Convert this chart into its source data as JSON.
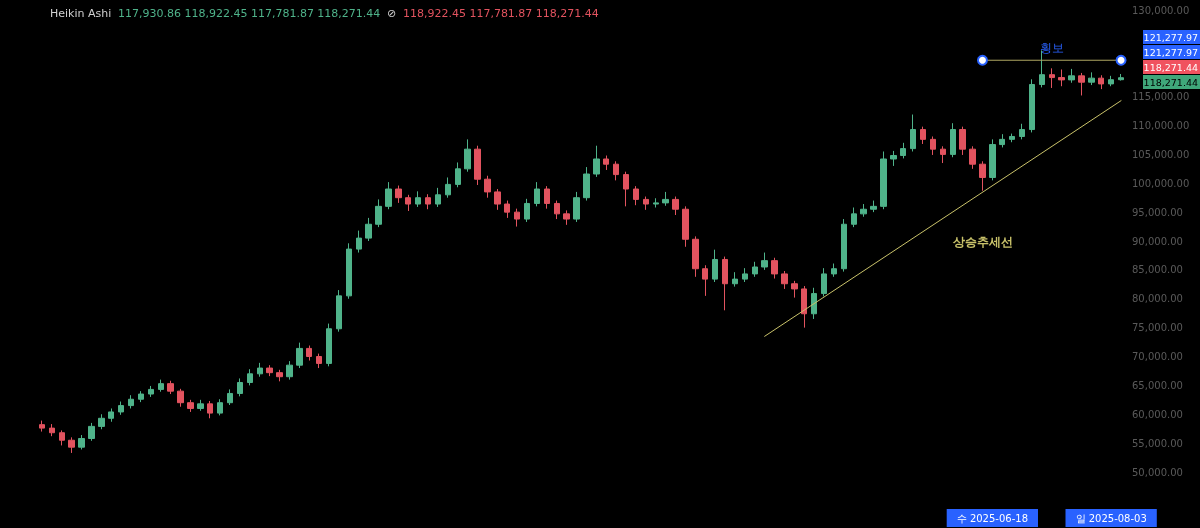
{
  "chart_data": {
    "type": "candlestick",
    "title": "Heikin Ashi",
    "annotations": [
      "117,930.86 118,922.45 117,781.87 118,271.44",
      "⊘",
      "118,922.45 117,781.87 118,271.44",
      "121,277.97",
      "121,277.97",
      "118,271.44",
      "118,271.44"
    ],
    "categories": [
      null,
      null,
      null,
      null,
      null,
      null,
      null,
      null,
      null,
      null,
      null,
      null,
      null,
      null,
      null,
      null,
      null,
      null,
      null,
      null,
      null,
      null,
      null,
      null,
      null,
      null,
      null,
      null,
      null,
      null,
      null,
      null,
      null,
      null,
      null,
      null,
      null,
      null,
      null,
      null,
      null,
      null,
      null,
      null,
      null,
      null,
      null,
      null,
      null,
      null,
      null,
      null,
      null,
      null,
      null,
      null,
      null,
      null,
      null,
      null,
      null,
      null,
      null,
      null,
      null,
      null,
      null,
      null,
      null,
      null,
      null,
      null,
      null,
      null,
      null,
      null,
      null,
      null,
      null,
      null,
      null,
      null,
      null,
      null,
      null,
      null,
      null,
      null,
      null,
      null,
      null,
      null,
      null,
      null,
      null,
      null,
      "수 2025-06-18",
      null,
      null,
      null,
      null,
      null,
      null,
      null,
      null,
      null,
      null,
      null,
      "일 2025-08-03",
      null
    ],
    "ohlc": [
      [
        58200,
        58900,
        57000,
        57600
      ],
      [
        57600,
        58300,
        56200,
        56800
      ],
      [
        56800,
        57200,
        54600,
        55500
      ],
      [
        55500,
        56000,
        53300,
        54300
      ],
      [
        54300,
        56400,
        53900,
        55800
      ],
      [
        55800,
        58500,
        55400,
        57900
      ],
      [
        57900,
        60000,
        57400,
        59300
      ],
      [
        59300,
        61000,
        58700,
        60400
      ],
      [
        60400,
        62200,
        59900,
        61500
      ],
      [
        61500,
        63300,
        61000,
        62600
      ],
      [
        62600,
        64000,
        62100,
        63500
      ],
      [
        63500,
        64900,
        63000,
        64300
      ],
      [
        64300,
        66000,
        63900,
        65300
      ],
      [
        65300,
        65800,
        63500,
        64000
      ],
      [
        64000,
        64400,
        61300,
        62000
      ],
      [
        62000,
        62500,
        60400,
        61000
      ],
      [
        61000,
        62500,
        60600,
        61800
      ],
      [
        61800,
        62300,
        59300,
        60200
      ],
      [
        60200,
        62600,
        59800,
        62000
      ],
      [
        62000,
        64300,
        61600,
        63600
      ],
      [
        63600,
        66200,
        63100,
        65500
      ],
      [
        65500,
        67800,
        65000,
        67000
      ],
      [
        67000,
        68900,
        66500,
        68000
      ],
      [
        68000,
        68500,
        66600,
        67200
      ],
      [
        67200,
        67700,
        65700,
        66500
      ],
      [
        66500,
        69200,
        66000,
        68500
      ],
      [
        68500,
        72400,
        68000,
        71400
      ],
      [
        71400,
        71900,
        69300,
        70000
      ],
      [
        70000,
        70500,
        68000,
        68800
      ],
      [
        68800,
        75700,
        68300,
        74800
      ],
      [
        74800,
        81500,
        74300,
        80500
      ],
      [
        80500,
        89600,
        80000,
        88600
      ],
      [
        88600,
        91800,
        88000,
        90500
      ],
      [
        90500,
        94000,
        90000,
        92900
      ],
      [
        92900,
        97200,
        92400,
        96000
      ],
      [
        96000,
        100200,
        95500,
        99000
      ],
      [
        99000,
        99600,
        96600,
        97500
      ],
      [
        97500,
        98000,
        95200,
        96400
      ],
      [
        96400,
        98600,
        95900,
        97500
      ],
      [
        97500,
        98100,
        95500,
        96400
      ],
      [
        96400,
        99200,
        95900,
        98000
      ],
      [
        98000,
        101000,
        97500,
        99800
      ],
      [
        99800,
        103600,
        99300,
        102500
      ],
      [
        102500,
        107600,
        102000,
        105900
      ],
      [
        105900,
        106500,
        99700,
        100700
      ],
      [
        100700,
        101300,
        97500,
        98500
      ],
      [
        98500,
        99000,
        95400,
        96400
      ],
      [
        96400,
        97000,
        94000,
        95000
      ],
      [
        95000,
        95600,
        92500,
        93800
      ],
      [
        93800,
        97300,
        93300,
        96500
      ],
      [
        96500,
        100200,
        96000,
        99000
      ],
      [
        99000,
        99500,
        95600,
        96500
      ],
      [
        96500,
        97000,
        93800,
        94700
      ],
      [
        94700,
        95300,
        92800,
        93800
      ],
      [
        93800,
        98500,
        93300,
        97500
      ],
      [
        97500,
        102800,
        97000,
        101600
      ],
      [
        101600,
        106500,
        101100,
        104200
      ],
      [
        104200,
        104800,
        102300,
        103300
      ],
      [
        103300,
        103800,
        100500,
        101500
      ],
      [
        101500,
        102000,
        96000,
        99000
      ],
      [
        99000,
        99500,
        96200,
        97200
      ],
      [
        97200,
        97700,
        95400,
        96400
      ],
      [
        96400,
        97400,
        95800,
        96600
      ],
      [
        96600,
        98500,
        96100,
        97200
      ],
      [
        97200,
        97700,
        94500,
        95500
      ],
      [
        95500,
        96000,
        89000,
        90300
      ],
      [
        90300,
        90800,
        83800,
        85200
      ],
      [
        85200,
        85800,
        80500,
        83400
      ],
      [
        83400,
        88500,
        82900,
        86800
      ],
      [
        86800,
        87300,
        78000,
        82600
      ],
      [
        82600,
        84600,
        82100,
        83400
      ],
      [
        83400,
        85300,
        82900,
        84300
      ],
      [
        84300,
        86400,
        83800,
        85500
      ],
      [
        85500,
        88000,
        85000,
        86600
      ],
      [
        86600,
        87100,
        83500,
        84300
      ],
      [
        84300,
        84800,
        81700,
        82600
      ],
      [
        82600,
        83100,
        80200,
        81700
      ],
      [
        81700,
        82200,
        75000,
        77400
      ],
      [
        77400,
        81900,
        76500,
        80900
      ],
      [
        80900,
        85300,
        80400,
        84300
      ],
      [
        84300,
        86100,
        83800,
        85200
      ],
      [
        85200,
        93800,
        84700,
        92900
      ],
      [
        92900,
        95800,
        92400,
        94700
      ],
      [
        94700,
        96400,
        94200,
        95500
      ],
      [
        95500,
        97000,
        95000,
        96000
      ],
      [
        96000,
        105500,
        95500,
        104200
      ],
      [
        104200,
        105600,
        103000,
        104800
      ],
      [
        104800,
        107000,
        104300,
        106000
      ],
      [
        106000,
        111900,
        105500,
        109300
      ],
      [
        109300,
        109800,
        106800,
        107600
      ],
      [
        107600,
        108100,
        104900,
        105900
      ],
      [
        105900,
        106400,
        103500,
        105000
      ],
      [
        105000,
        110400,
        104500,
        109300
      ],
      [
        109300,
        109800,
        104900,
        105900
      ],
      [
        105900,
        106400,
        102500,
        103300
      ],
      [
        103300,
        103800,
        98700,
        101000
      ],
      [
        101000,
        107600,
        100500,
        106700
      ],
      [
        106700,
        108500,
        106200,
        107600
      ],
      [
        107600,
        108600,
        107100,
        108100
      ],
      [
        108100,
        110300,
        107600,
        109300
      ],
      [
        109300,
        118000,
        108800,
        117100
      ],
      [
        117100,
        123000,
        116600,
        118800
      ],
      [
        118800,
        119900,
        116500,
        118300
      ],
      [
        118300,
        119700,
        116800,
        117900
      ],
      [
        117900,
        119800,
        117400,
        118600
      ],
      [
        118600,
        119100,
        115200,
        117500
      ],
      [
        117500,
        119200,
        117000,
        118200
      ],
      [
        118200,
        118700,
        116300,
        117200
      ],
      [
        117200,
        118600,
        116800,
        117930.86
      ],
      [
        117930.86,
        118922.45,
        117781.87,
        118271.44
      ]
    ],
    "colors": [
      "#e2535f",
      "#e2535f",
      "#e2535f",
      "#e2535f",
      "#4fb38a",
      "#4fb38a",
      "#4fb38a",
      "#4fb38a",
      "#4fb38a",
      "#4fb38a",
      "#4fb38a",
      "#4fb38a",
      "#4fb38a",
      "#e2535f",
      "#e2535f",
      "#e2535f",
      "#4fb38a",
      "#e2535f",
      "#4fb38a",
      "#4fb38a",
      "#4fb38a",
      "#4fb38a",
      "#4fb38a",
      "#e2535f",
      "#e2535f",
      "#4fb38a",
      "#4fb38a",
      "#e2535f",
      "#e2535f",
      "#4fb38a",
      "#4fb38a",
      "#4fb38a",
      "#4fb38a",
      "#4fb38a",
      "#4fb38a",
      "#4fb38a",
      "#e2535f",
      "#e2535f",
      "#4fb38a",
      "#e2535f",
      "#4fb38a",
      "#4fb38a",
      "#4fb38a",
      "#4fb38a",
      "#e2535f",
      "#e2535f",
      "#e2535f",
      "#e2535f",
      "#e2535f",
      "#4fb38a",
      "#4fb38a",
      "#e2535f",
      "#e2535f",
      "#e2535f",
      "#4fb38a",
      "#4fb38a",
      "#4fb38a",
      "#e2535f",
      "#e2535f",
      "#e2535f",
      "#e2535f",
      "#e2535f",
      "#4fb38a",
      "#4fb38a",
      "#e2535f",
      "#e2535f",
      "#e2535f",
      "#e2535f",
      "#4fb38a",
      "#e2535f",
      "#4fb38a",
      "#4fb38a",
      "#4fb38a",
      "#4fb38a",
      "#e2535f",
      "#e2535f",
      "#e2535f",
      "#e2535f",
      "#4fb38a",
      "#4fb38a",
      "#4fb38a",
      "#4fb38a",
      "#4fb38a",
      "#4fb38a",
      "#4fb38a",
      "#4fb38a",
      "#4fb38a",
      "#4fb38a",
      "#4fb38a",
      "#e2535f",
      "#e2535f",
      "#e2535f",
      "#4fb38a",
      "#e2535f",
      "#e2535f",
      "#e2535f",
      "#4fb38a",
      "#4fb38a",
      "#4fb38a",
      "#4fb38a",
      "#4fb38a",
      "#4fb38a",
      "#e2535f",
      "#e2535f",
      "#4fb38a",
      "#e2535f",
      "#4fb38a",
      "#e2535f",
      "#4fb38a",
      "#4fb38a"
    ],
    "series": [
      {
        "type": "line",
        "name": "상승추세선",
        "color": "#c9c26a",
        "marker": "none",
        "values": [
          null,
          null,
          null,
          null,
          null,
          null,
          null,
          null,
          null,
          null,
          null,
          null,
          null,
          null,
          null,
          null,
          null,
          null,
          null,
          null,
          null,
          null,
          null,
          null,
          null,
          null,
          null,
          null,
          null,
          null,
          null,
          null,
          null,
          null,
          null,
          null,
          null,
          null,
          null,
          null,
          null,
          null,
          null,
          null,
          null,
          null,
          null,
          null,
          null,
          null,
          null,
          null,
          null,
          null,
          null,
          null,
          null,
          null,
          null,
          null,
          null,
          null,
          null,
          null,
          null,
          null,
          null,
          null,
          null,
          null,
          null,
          null,
          null,
          73500,
          null,
          null,
          null,
          null,
          null,
          null,
          null,
          null,
          null,
          null,
          null,
          null,
          null,
          null,
          null,
          null,
          null,
          null,
          null,
          null,
          null,
          null,
          null,
          null,
          null,
          null,
          null,
          null,
          null,
          null,
          null,
          null,
          null,
          null,
          null,
          114300
        ]
      },
      {
        "type": "line",
        "name": "횡보",
        "color": "#b0a762",
        "marker": "circle",
        "values": [
          null,
          null,
          null,
          null,
          null,
          null,
          null,
          null,
          null,
          null,
          null,
          null,
          null,
          null,
          null,
          null,
          null,
          null,
          null,
          null,
          null,
          null,
          null,
          null,
          null,
          null,
          null,
          null,
          null,
          null,
          null,
          null,
          null,
          null,
          null,
          null,
          null,
          null,
          null,
          null,
          null,
          null,
          null,
          null,
          null,
          null,
          null,
          null,
          null,
          null,
          null,
          null,
          null,
          null,
          null,
          null,
          null,
          null,
          null,
          null,
          null,
          null,
          null,
          null,
          null,
          null,
          null,
          null,
          null,
          null,
          null,
          null,
          null,
          null,
          null,
          null,
          null,
          null,
          null,
          null,
          null,
          null,
          null,
          null,
          null,
          null,
          null,
          null,
          null,
          null,
          null,
          null,
          null,
          null,
          null,
          121300,
          null,
          null,
          null,
          null,
          null,
          null,
          null,
          null,
          null,
          null,
          null,
          null,
          null,
          121300
        ]
      }
    ],
    "ylim": [
      50000,
      130000
    ],
    "yticks": [
      {
        "value": 130000,
        "label": "130,000.00"
      },
      {
        "value": 115000,
        "label": "115,000.00"
      },
      {
        "value": 110000,
        "label": "110,000.00"
      },
      {
        "value": 105000,
        "label": "105,000.00"
      },
      {
        "value": 100000,
        "label": "100,000.00"
      },
      {
        "value": 95000,
        "label": "95,000.00"
      },
      {
        "value": 90000,
        "label": "90,000.00"
      },
      {
        "value": 85000,
        "label": "85,000.00"
      },
      {
        "value": 80000,
        "label": "80,000.00"
      },
      {
        "value": 75000,
        "label": "75,000.00"
      },
      {
        "value": 70000,
        "label": "70,000.00"
      },
      {
        "value": 65000,
        "label": "65,000.00"
      },
      {
        "value": 60000,
        "label": "60,000.00"
      },
      {
        "value": 55000,
        "label": "55,000.00"
      },
      {
        "value": 50000,
        "label": "50,000.00"
      }
    ],
    "grid": false,
    "legend": false
  }
}
